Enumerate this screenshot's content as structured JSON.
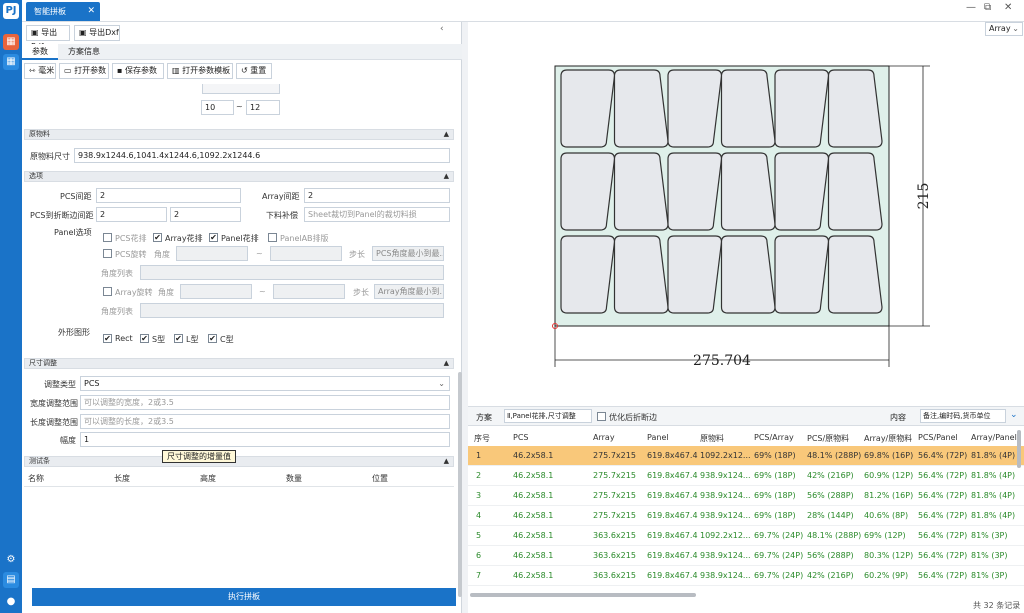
{
  "app": {
    "tab_title": "智能拼板",
    "logo_glyph": "PJ",
    "accent": "#1a73c8"
  },
  "window": {
    "minimize": "—",
    "restore": "⧉",
    "close": "✕"
  },
  "export": {
    "pdf": "导出Pdf",
    "dxf": "导出Dxf"
  },
  "tabs": [
    {
      "label": "参数"
    },
    {
      "label": "方案信息"
    }
  ],
  "toolbar": {
    "mm": "毫米",
    "open": "打开参数",
    "save": "保存参数",
    "template": "打开参数模板",
    "reset": "重置"
  },
  "range": {
    "from": "10",
    "sep": "~",
    "to": "12"
  },
  "material": {
    "section": "原物料",
    "label": "原物料尺寸",
    "value": "938.9x1244.6,1041.4x1244.6,1092.2x1244.6"
  },
  "options": {
    "section": "选项",
    "pcs_gap_label": "PCS间距",
    "pcs_gap": "2",
    "array_gap_label": "Array间距",
    "array_gap": "2",
    "pcs_edge_label": "PCS到折断边间距",
    "pcs_edge_1": "2",
    "pcs_edge_2": "2",
    "scrap_label": "下料补偿",
    "scrap_placeholder": "Sheet裁切到Panel的裁切料损",
    "panel_opts_label": "Panel选项",
    "cb_pcs_flower": "PCS花排",
    "cb_array_flower": "Array花排",
    "cb_panel_flower": "Panel花排",
    "cb_panel_ab": "PanelAB排版",
    "pcs_rotate": "PCS旋转",
    "angle": "角度",
    "tilde": "~",
    "step": "步长",
    "pcs_step_placeholder": "PCS角度最小到最...",
    "angle_list": "角度列表",
    "array_rotate": "Array旋转",
    "array_step_placeholder": "Array角度最小到...",
    "shape_label": "外形图形",
    "shape_rect": "Rect",
    "shape_s": "S型",
    "shape_l": "L型",
    "shape_c": "C型"
  },
  "size_adjust": {
    "section": "尺寸调整",
    "type_label": "调整类型",
    "type_value": "PCS",
    "width_label": "宽度调整范围",
    "width_placeholder": "可以调整的宽度，2或3.5",
    "length_label": "长度调整范围",
    "length_placeholder": "可以调整的长度，2或3.5",
    "step_label": "幅度",
    "step_value": "1",
    "tooltip": "尺寸调整的增量值"
  },
  "test_board": {
    "section": "测试条",
    "columns": [
      "名称",
      "长度",
      "高度",
      "数量",
      "位置"
    ]
  },
  "run_button": "执行拼板",
  "canvas": {
    "width_dim": "275.704",
    "height_dim": "215",
    "view_select": "Array"
  },
  "result_bar": {
    "scheme_label": "方案",
    "scheme_value": "Ⅱ,Panel花排,尺寸调整",
    "optimize_label": "优化后折断边",
    "content_label": "内容",
    "content_value": "备注,编时码,货币单位"
  },
  "table": {
    "columns": [
      "序号",
      "PCS",
      "Array",
      "Panel",
      "原物料",
      "PCS/Array",
      "PCS/原物料",
      "Array/原物料",
      "PCS/Panel",
      "Array/Panel"
    ],
    "rows": [
      [
        "1",
        "46.2x58.1",
        "275.7x215",
        "619.8x467.4",
        "1092.2x12...",
        "69% (18P)",
        "48.1% (288P)",
        "69.8% (16P)",
        "56.4% (72P)",
        "81.8% (4P)"
      ],
      [
        "2",
        "46.2x58.1",
        "275.7x215",
        "619.8x467.4",
        "938.9x124...",
        "69% (18P)",
        "42% (216P)",
        "60.9% (12P)",
        "56.4% (72P)",
        "81.8% (4P)"
      ],
      [
        "3",
        "46.2x58.1",
        "275.7x215",
        "619.8x467.4",
        "938.9x124...",
        "69% (18P)",
        "56% (288P)",
        "81.2% (16P)",
        "56.4% (72P)",
        "81.8% (4P)"
      ],
      [
        "4",
        "46.2x58.1",
        "275.7x215",
        "619.8x467.4",
        "938.9x124...",
        "69% (18P)",
        "28% (144P)",
        "40.6% (8P)",
        "56.4% (72P)",
        "81.8% (4P)"
      ],
      [
        "5",
        "46.2x58.1",
        "363.6x215",
        "619.8x467.4",
        "1092.2x12...",
        "69.7% (24P)",
        "48.1% (288P)",
        "69% (12P)",
        "56.4% (72P)",
        "81% (3P)"
      ],
      [
        "6",
        "46.2x58.1",
        "363.6x215",
        "619.8x467.4",
        "938.9x124...",
        "69.7% (24P)",
        "56% (288P)",
        "80.3% (12P)",
        "56.4% (72P)",
        "81% (3P)"
      ],
      [
        "7",
        "46.2x58.1",
        "363.6x215",
        "619.8x467.4",
        "938.9x124...",
        "69.7% (24P)",
        "42% (216P)",
        "60.2% (9P)",
        "56.4% (72P)",
        "81% (3P)"
      ]
    ],
    "footer": "共 32 条记录"
  }
}
